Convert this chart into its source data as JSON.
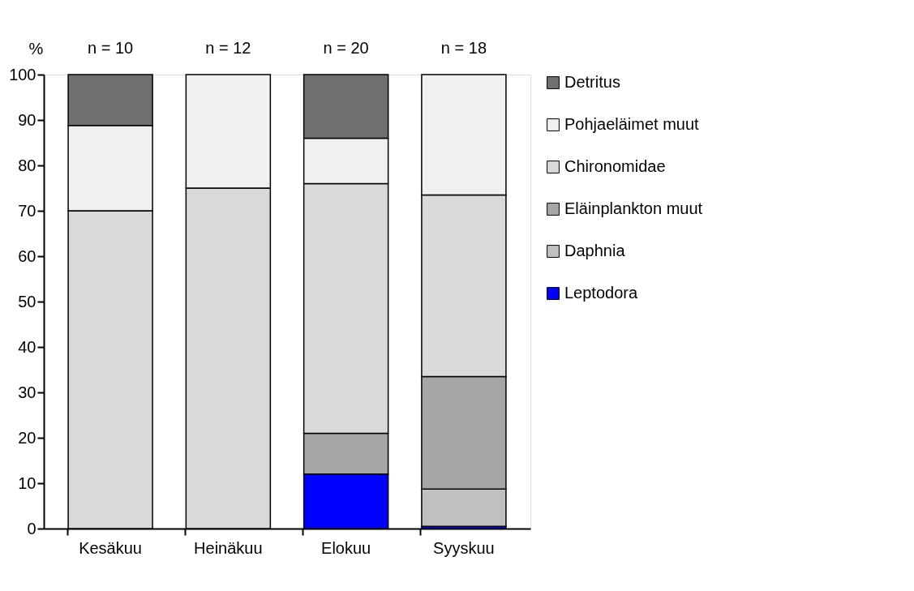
{
  "chart_data": {
    "type": "bar",
    "stacked": true,
    "ylabel": "%",
    "categories": [
      "Kesäkuu",
      "Heinäkuu",
      "Elokuu",
      "Syyskuu"
    ],
    "series": [
      {
        "name": "Leptodora",
        "color": "#0000ff",
        "values": [
          null,
          null,
          12,
          0.5
        ]
      },
      {
        "name": "Daphnia",
        "color": "#c0c0c0",
        "values": [
          null,
          null,
          null,
          8.2
        ]
      },
      {
        "name": "Eläinplankton muut",
        "color": "#a6a6a6",
        "values": [
          null,
          null,
          9,
          24.8
        ]
      },
      {
        "name": "Chironomidae",
        "color": "#d9d9d9",
        "values": [
          70,
          75,
          55,
          40
        ]
      },
      {
        "name": "Pohjaeläimet muut",
        "color": "#f0f0f0",
        "values": [
          18.8,
          25,
          10,
          26.5
        ]
      },
      {
        "name": "Detritus",
        "color": "#707070",
        "values": [
          11.2,
          null,
          14,
          null
        ]
      }
    ],
    "ylim": [
      0,
      100
    ],
    "yticks": [
      0,
      10,
      20,
      30,
      40,
      50,
      60,
      70,
      80,
      90,
      100
    ],
    "grid": false,
    "legend": "right",
    "annotations": [
      "n = 10",
      "n = 12",
      "n = 20",
      "n = 18"
    ]
  }
}
